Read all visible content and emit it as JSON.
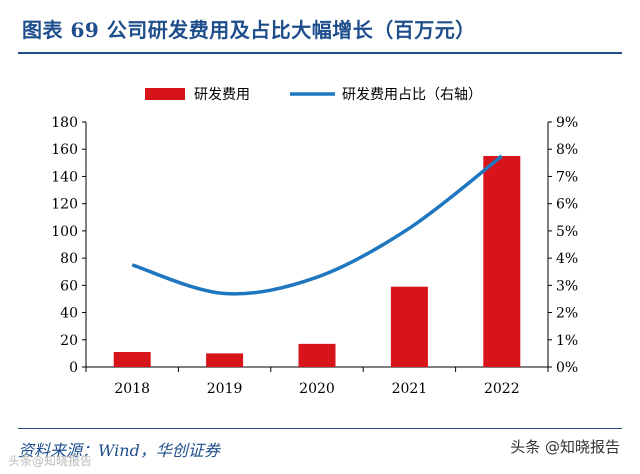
{
  "header": {
    "title": "图表 69   公司研发费用及占比大幅增长（百万元）"
  },
  "chart_data": {
    "type": "bar",
    "title": "公司研发费用及占比大幅增长（百万元）",
    "categories": [
      "2018",
      "2019",
      "2020",
      "2021",
      "2022"
    ],
    "series": [
      {
        "name": "研发费用",
        "type": "bar",
        "axis": "left",
        "color": "#d7141a",
        "values": [
          11,
          10,
          17,
          59,
          155
        ]
      },
      {
        "name": "研发费用占比（右轴）",
        "type": "line",
        "axis": "right",
        "color": "#1f77c0",
        "values": [
          3.75,
          2.7,
          3.3,
          5.1,
          7.75
        ]
      }
    ],
    "y_left": {
      "min": 0,
      "max": 180,
      "ticks": [
        "0",
        "20",
        "40",
        "60",
        "80",
        "100",
        "120",
        "140",
        "160",
        "180"
      ]
    },
    "y_right": {
      "min": 0,
      "max": 9,
      "ticks": [
        "0%",
        "1%",
        "2%",
        "3%",
        "4%",
        "5%",
        "6%",
        "7%",
        "8%",
        "9%"
      ]
    },
    "legend": {
      "position": "top",
      "items": [
        "研发费用",
        "研发费用占比（右轴）"
      ]
    }
  },
  "footer": {
    "source": "资料来源：Wind，华创证券",
    "watermark": "头条 @知晓报告",
    "watermark_left": "头条@知晓报告"
  }
}
